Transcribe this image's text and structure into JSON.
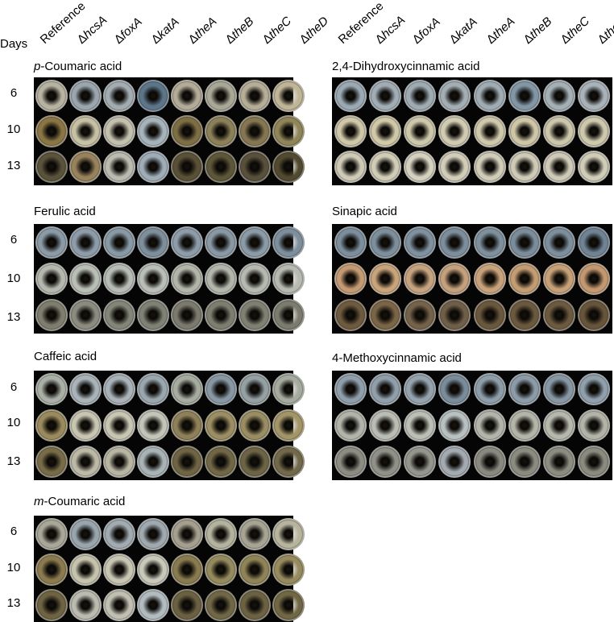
{
  "days_title": "Days",
  "strains": [
    {
      "prefix": "",
      "name": "Reference"
    },
    {
      "prefix": "Δ",
      "name": "hcsA"
    },
    {
      "prefix": "Δ",
      "name": "foxA"
    },
    {
      "prefix": "Δ",
      "name": "katA"
    },
    {
      "prefix": "Δ",
      "name": "theA"
    },
    {
      "prefix": "Δ",
      "name": "theB"
    },
    {
      "prefix": "Δ",
      "name": "theC"
    },
    {
      "prefix": "Δ",
      "name": "theD"
    }
  ],
  "days": [
    "6",
    "10",
    "13"
  ],
  "panels": [
    {
      "title_prefix": "p",
      "title_rest": "-Coumaric acid",
      "plates": [
        [
          "#b8b3a0",
          "#9aa5ad",
          "#a3acb1",
          "#5d7588",
          "#b3ab98",
          "#a9a896",
          "#b6ad96",
          "#c0b597"
        ],
        [
          "#8a7545",
          "#c7c1a4",
          "#c3c0ad",
          "#a6b3ba",
          "#7d6e44",
          "#8b8058",
          "#857652",
          "#8f8559"
        ],
        [
          "#5a523a",
          "#97825c",
          "#bbbbb0",
          "#9eadb7",
          "#5a5036",
          "#5d5638",
          "#58503a",
          "#524a30"
        ]
      ]
    },
    {
      "title_prefix": "",
      "title_rest": "2,4-Dihydroxycinnamic acid",
      "plates": [
        [
          "#9aa9b3",
          "#a1adb4",
          "#9fabb2",
          "#a3aeb4",
          "#a0acb3",
          "#8296a5",
          "#a5b0b6",
          "#a8b2b8"
        ],
        [
          "#cfc7a8",
          "#d0c8a7",
          "#cec8ab",
          "#d1cbb1",
          "#cfc8aa",
          "#cec6a7",
          "#ccc6ab",
          "#cec8ad"
        ],
        [
          "#cfcab6",
          "#d1ccb6",
          "#d5d1bf",
          "#d2cdb8",
          "#d0ccb8",
          "#cfcab6",
          "#cfcab7",
          "#d1ccb8"
        ]
      ]
    },
    {
      "title_prefix": "",
      "title_rest": "Ferulic acid",
      "plates": [
        [
          "#8a9aa6",
          "#8d9ca8",
          "#8899a5",
          "#7e8f9c",
          "#8d9ca8",
          "#8898a4",
          "#8a9aa6",
          "#7d8e9c"
        ],
        [
          "#b4b8ae",
          "#b9bfb6",
          "#b7bdb6",
          "#b9bfb8",
          "#b1b5aa",
          "#b2b6ab",
          "#b5b9b0",
          "#b6bab1"
        ],
        [
          "#7f7e6e",
          "#8b8b80",
          "#838578",
          "#7f8174",
          "#7b7a6c",
          "#7e7e70",
          "#808072",
          "#7c7c6e"
        ]
      ]
    },
    {
      "title_prefix": "",
      "title_rest": "Sinapic acid",
      "plates": [
        [
          "#7c8e9c",
          "#7d8f9d",
          "#7f909e",
          "#7c8e9c",
          "#7e909e",
          "#7b8d9b",
          "#7d8f9d",
          "#6f8394"
        ],
        [
          "#c39a72",
          "#c9a47a",
          "#c6a37e",
          "#c4a07c",
          "#c8a27a",
          "#c39c72",
          "#c6a077",
          "#c39870"
        ],
        [
          "#6e5a3f",
          "#7a6546",
          "#74624a",
          "#705f48",
          "#6a583e",
          "#6b593f",
          "#6c5a40",
          "#67553b"
        ]
      ]
    },
    {
      "title_prefix": "",
      "title_rest": "Caffeic acid",
      "plates": [
        [
          "#aab0a5",
          "#a9b3b8",
          "#a8b2b8",
          "#9aa7ae",
          "#a7aca1",
          "#8797a3",
          "#94a0a2",
          "#a6ab9f"
        ],
        [
          "#9a8b5c",
          "#c8c6b0",
          "#c7c6b2",
          "#c2c5b8",
          "#8e8058",
          "#9b8e62",
          "#9a8d62",
          "#a39568"
        ],
        [
          "#786c48",
          "#bcb9a6",
          "#b8b6a2",
          "#a9b3b6",
          "#6f6444",
          "#716746",
          "#6d6445",
          "#72684a"
        ]
      ]
    },
    {
      "title_prefix": "",
      "title_rest": "4-Methoxycinnamic acid",
      "plates": [
        [
          "#8e9eaa",
          "#909fab",
          "#95a3ae",
          "#7a8c9a",
          "#8d9da9",
          "#8b9ba7",
          "#8797a3",
          "#8f9fab"
        ],
        [
          "#b2b4aa",
          "#babdb3",
          "#bcbfb6",
          "#b9c0c0",
          "#b3b5aa",
          "#b4b5a9",
          "#b6b8ad",
          "#b3b4a8"
        ],
        [
          "#8c8c82",
          "#8f9087",
          "#94958c",
          "#a3aab0",
          "#89897f",
          "#8b8b80",
          "#8c8c81",
          "#8a8a7f"
        ]
      ]
    },
    {
      "title_prefix": "m",
      "title_rest": "-Coumaric acid",
      "plates": [
        [
          "#a9a797",
          "#98a5ad",
          "#a1abb1",
          "#9fa9af",
          "#a49f8e",
          "#b4b39e",
          "#a7a494",
          "#b7b49d"
        ],
        [
          "#8a7a4e",
          "#c6c3ad",
          "#c8c6b3",
          "#c9c9ba",
          "#897b50",
          "#958a5e",
          "#8f8457",
          "#968a5e"
        ],
        [
          "#6e6342",
          "#bbbbb0",
          "#c0bfb1",
          "#b2bcc0",
          "#6b6142",
          "#706746",
          "#6c6243",
          "#716745"
        ]
      ]
    }
  ]
}
